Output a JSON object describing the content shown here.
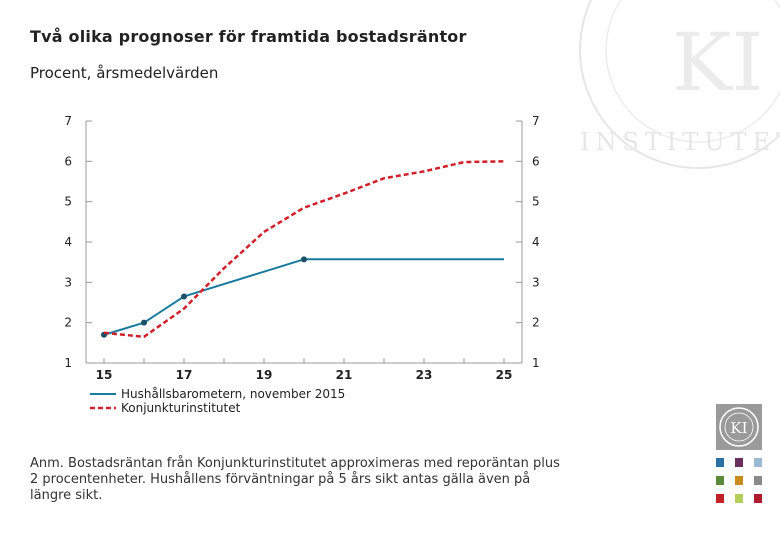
{
  "header": {
    "title": "Två olika prognoser för framtida bostadsräntor",
    "subtitle": "Procent, årsmedelvärden"
  },
  "note": {
    "text": "Anm. Bostadsräntan från Konjunkturinstitutet approximeras med reporäntan plus 2 procentenheter. Hushållens förväntningar på 5 års sikt antas gälla även på längre sikt."
  },
  "watermark": {
    "letters": "KI",
    "ring_text": "INSTITUTET"
  },
  "logo": {
    "letters": "KI"
  },
  "colors": {
    "hushall": "#1a7a9e",
    "ki": "#d0202a",
    "axis": "#999999",
    "text": "#222222"
  },
  "chart_data": {
    "type": "line",
    "title": "Två olika prognoser för framtida bostadsräntor",
    "ylabel": "Procent, årsmedelvärden",
    "xlabel": "",
    "xlim": [
      15,
      25
    ],
    "ylim": [
      1,
      7
    ],
    "xticks": [
      "15",
      "17",
      "19",
      "21",
      "23",
      "25"
    ],
    "xtick_values": [
      15,
      17,
      19,
      21,
      23,
      25
    ],
    "yticks": [
      "1",
      "2",
      "3",
      "4",
      "5",
      "6",
      "7"
    ],
    "ytick_values": [
      1,
      2,
      3,
      4,
      5,
      6,
      7
    ],
    "legend_position": "bottom-left",
    "series": [
      {
        "name": "Hushållsbarometern, november 2015",
        "style": "solid",
        "color": "#1a7a9e",
        "x": [
          15,
          16,
          17,
          20,
          25
        ],
        "y": [
          1.7,
          2.0,
          2.65,
          3.57,
          3.57
        ],
        "markers_at": [
          15,
          16,
          17,
          20
        ]
      },
      {
        "name": "Konjunkturinstitutet",
        "style": "dashed",
        "color": "#d0202a",
        "x": [
          15,
          16,
          17,
          18,
          19,
          20,
          21,
          22,
          23,
          24,
          25
        ],
        "y": [
          1.75,
          1.65,
          2.35,
          3.35,
          4.25,
          4.85,
          5.2,
          5.58,
          5.75,
          5.98,
          6.0
        ]
      }
    ]
  }
}
